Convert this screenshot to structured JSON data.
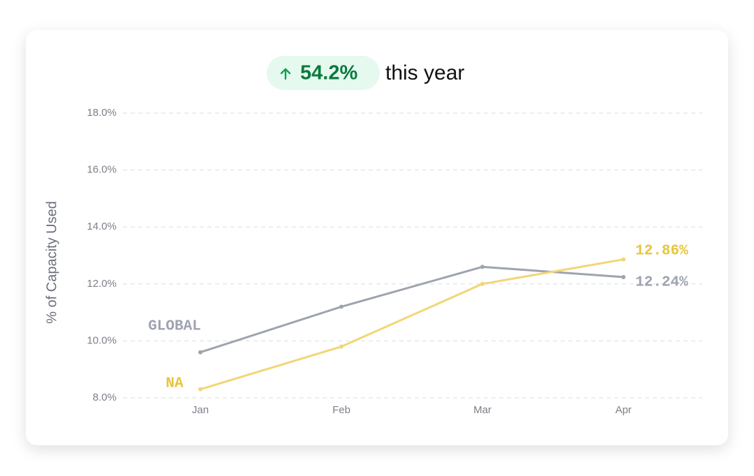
{
  "badge": "54.2%",
  "badge_suffix": "this year",
  "chart_data": {
    "type": "line",
    "ylabel": "% of Capacity Used",
    "categories": [
      "Jan",
      "Feb",
      "Mar",
      "Apr"
    ],
    "series": [
      {
        "name": "GLOBAL",
        "color": "#9ea3b0",
        "label_color": "#9ea3b0",
        "values": [
          9.6,
          11.2,
          12.6,
          12.24
        ],
        "value_labels": [
          null,
          null,
          null,
          "12.24%"
        ]
      },
      {
        "name": "NA",
        "color": "#f2d675",
        "label_color": "#e8c53a",
        "values": [
          8.3,
          9.8,
          12.0,
          12.86
        ],
        "value_labels": [
          null,
          null,
          null,
          "12.86%"
        ]
      }
    ],
    "ylim": [
      8,
      18
    ],
    "yticks": [
      {
        "value": 8,
        "label": "8.0%"
      },
      {
        "value": 10,
        "label": "10.0%"
      },
      {
        "value": 12,
        "label": "12.0%"
      },
      {
        "value": 14,
        "label": "14.0%"
      },
      {
        "value": 16,
        "label": "16.0%"
      },
      {
        "value": 18,
        "label": "18.0%"
      }
    ],
    "grid": true
  }
}
